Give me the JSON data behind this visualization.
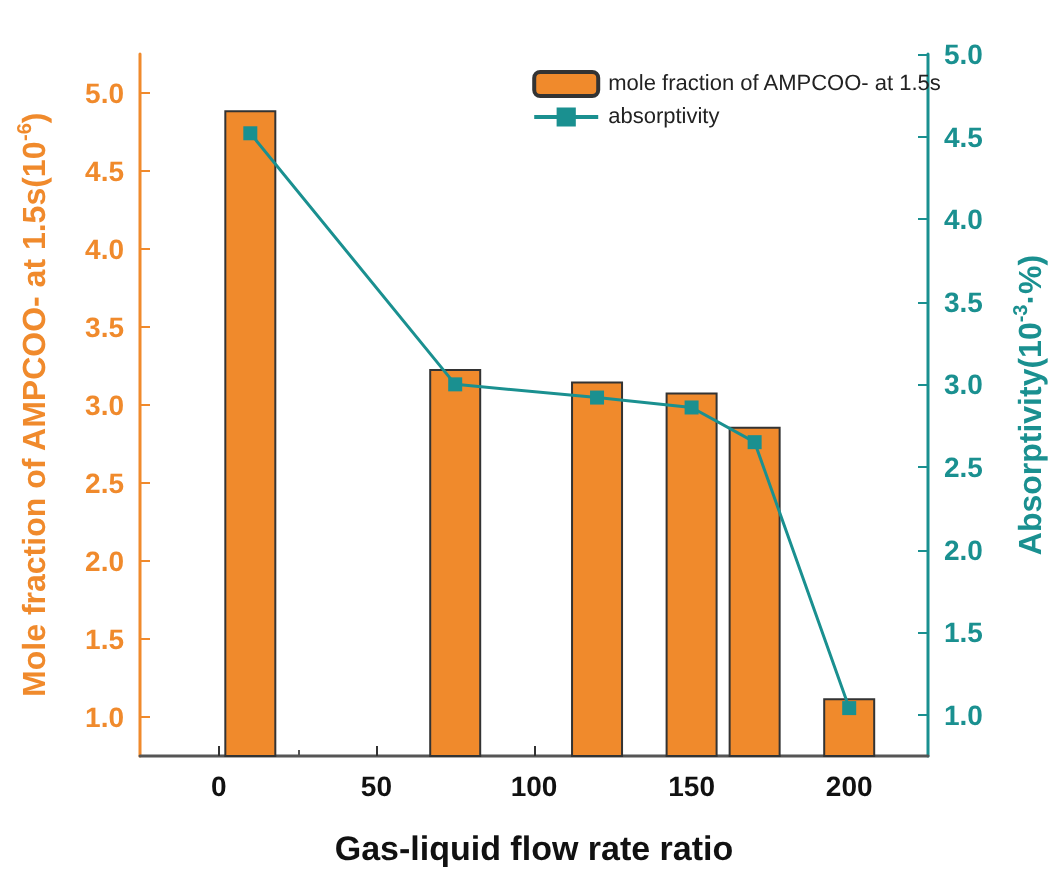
{
  "chart_data": {
    "type": "bar",
    "xlabel": "Gas-liquid flow rate ratio",
    "ylabel": "Mole fraction of AMPCOO- at 1.5s(10$^{-6}$)",
    "y2label": "Absorptivity(10$^{-3}$·%)",
    "x": [
      10,
      75,
      120,
      150,
      170,
      200
    ],
    "series": [
      {
        "name": "mole fraction of AMPCOO- at 1.5s",
        "color": "#f08a2c",
        "values": [
          4.89,
          3.23,
          3.15,
          3.08,
          2.86,
          1.12
        ]
      },
      {
        "name": "absorptivity",
        "type": "line",
        "axis": "y2",
        "color": "#1a9090",
        "marker": "square",
        "values": [
          4.52,
          3.0,
          2.92,
          2.86,
          2.65,
          1.04
        ]
      }
    ],
    "xlim": [
      -25,
      225
    ],
    "xticks": [
      0,
      50,
      100,
      150,
      200
    ],
    "ylim": [
      0.75,
      5.25
    ],
    "yticks": [
      {
        "value": 1,
        "label": "1.0"
      },
      1.5,
      {
        "value": 2,
        "label": "2.0"
      },
      2.5,
      {
        "value": 3,
        "label": "3.0"
      },
      3.5,
      {
        "value": 4,
        "label": "4.0"
      },
      4.5,
      {
        "value": 5,
        "label": "5.0"
      }
    ],
    "y2lim": [
      0.75,
      5.0
    ],
    "y2ticks": [
      {
        "value": 1,
        "label": "1.0"
      },
      1.5,
      {
        "value": 2,
        "label": "2.0"
      },
      2.5,
      {
        "value": 3,
        "label": "3.0"
      },
      3.5,
      {
        "value": 4,
        "label": "4.0"
      },
      4.5,
      {
        "value": 5,
        "label": "5.0"
      }
    ],
    "legend": "top right"
  }
}
